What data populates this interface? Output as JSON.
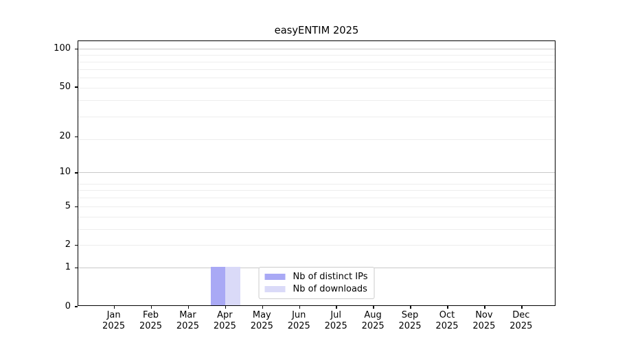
{
  "title": "easyENTIM 2025",
  "chart_data": {
    "type": "bar",
    "title": "easyENTIM 2025",
    "categories": [
      "Jan",
      "Feb",
      "Mar",
      "Apr",
      "May",
      "Jun",
      "Jul",
      "Aug",
      "Sep",
      "Oct",
      "Nov",
      "Dec"
    ],
    "year_label": "2025",
    "series": [
      {
        "name": "Nb of distinct IPs",
        "color": "#a9a9f5",
        "values": [
          0,
          0,
          0,
          1,
          0,
          0,
          0,
          0,
          0,
          0,
          0,
          0
        ]
      },
      {
        "name": "Nb of downloads",
        "color": "#dadaf8",
        "values": [
          0,
          0,
          0,
          1,
          0,
          0,
          0,
          0,
          0,
          0,
          0,
          0
        ]
      }
    ],
    "xlabel": "",
    "ylabel": "",
    "y_ticks": [
      0,
      1,
      2,
      5,
      10,
      20,
      50,
      100
    ],
    "y_scale": "log10(1+y)",
    "ylim": [
      0,
      115
    ],
    "grid": "on",
    "legend_position": "lower center",
    "colors": {
      "major_grid": "#c9c9c9",
      "minor_grid": "#ededed",
      "axis": "#000000",
      "text": "#000000",
      "background": "#ffffff"
    }
  }
}
